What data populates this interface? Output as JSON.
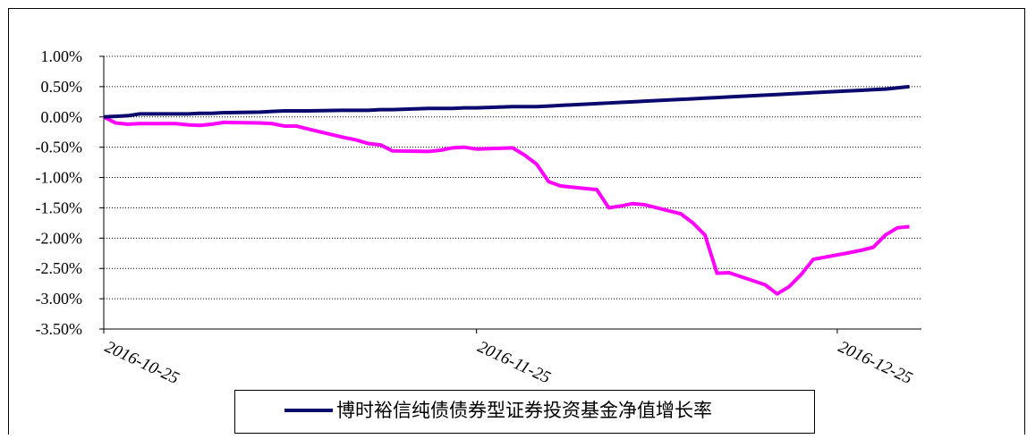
{
  "chart_data": {
    "type": "line",
    "x": [
      "2016-10-25",
      "2016-10-26",
      "2016-10-27",
      "2016-10-28",
      "2016-10-31",
      "2016-11-01",
      "2016-11-02",
      "2016-11-03",
      "2016-11-04",
      "2016-11-07",
      "2016-11-08",
      "2016-11-09",
      "2016-11-10",
      "2016-11-11",
      "2016-11-14",
      "2016-11-15",
      "2016-11-16",
      "2016-11-17",
      "2016-11-18",
      "2016-11-21",
      "2016-11-22",
      "2016-11-23",
      "2016-11-24",
      "2016-11-25",
      "2016-11-28",
      "2016-11-29",
      "2016-11-30",
      "2016-12-01",
      "2016-12-02",
      "2016-12-05",
      "2016-12-06",
      "2016-12-07",
      "2016-12-08",
      "2016-12-09",
      "2016-12-12",
      "2016-12-13",
      "2016-12-14",
      "2016-12-15",
      "2016-12-16",
      "2016-12-19",
      "2016-12-20",
      "2016-12-21",
      "2016-12-22",
      "2016-12-23",
      "2016-12-26",
      "2016-12-27",
      "2016-12-28",
      "2016-12-29",
      "2016-12-30",
      "2016-12-31"
    ],
    "series": [
      {
        "name": "博时裕信纯债债券型证券投资基金净值增长率",
        "color": "#0a0a6e",
        "values": [
          0,
          0.01,
          0.02,
          0.05,
          0.05,
          0.05,
          0.06,
          0.06,
          0.07,
          0.08,
          0.09,
          0.1,
          0.1,
          0.1,
          0.11,
          0.11,
          0.11,
          0.12,
          0.12,
          0.14,
          0.14,
          0.14,
          0.15,
          0.15,
          0.17,
          0.17,
          0.17,
          0.18,
          0.19,
          0.22,
          0.23,
          0.24,
          0.25,
          0.26,
          0.29,
          0.3,
          0.31,
          0.32,
          0.33,
          0.36,
          0.37,
          0.38,
          0.39,
          0.4,
          0.43,
          0.44,
          0.45,
          0.46,
          0.48,
          0.5
        ]
      },
      {
        "color": "#ff00ff",
        "values": [
          0,
          -0.1,
          -0.12,
          -0.11,
          -0.11,
          -0.13,
          -0.14,
          -0.12,
          -0.09,
          -0.1,
          -0.11,
          -0.15,
          -0.15,
          -0.2,
          -0.34,
          -0.38,
          -0.44,
          -0.46,
          -0.56,
          -0.57,
          -0.55,
          -0.51,
          -0.5,
          -0.53,
          -0.51,
          -0.63,
          -0.78,
          -1.07,
          -1.14,
          -1.2,
          -1.5,
          -1.47,
          -1.43,
          -1.45,
          -1.6,
          -1.75,
          -1.95,
          -2.58,
          -2.57,
          -2.77,
          -2.92,
          -2.8,
          -2.6,
          -2.35,
          -2.24,
          -2.2,
          -2.15,
          -1.95,
          -1.83,
          -1.81
        ]
      }
    ],
    "xlim": [
      "2016-10-25",
      "2017-01-01"
    ],
    "xticks": [
      "2016-10-25",
      "2016-11-25",
      "2016-12-25"
    ],
    "ylim": [
      -3.5,
      1
    ],
    "yticks": [
      {
        "value": 1,
        "label": "1.00%"
      },
      {
        "value": 0.5,
        "label": "0.50%"
      },
      {
        "value": 0,
        "label": "0.00%"
      },
      {
        "value": -0.5,
        "label": "-0.50%"
      },
      {
        "value": -1,
        "label": "-1.00%"
      },
      {
        "value": -1.5,
        "label": "-1.50%"
      },
      {
        "value": -2,
        "label": "-2.00%"
      },
      {
        "value": -2.5,
        "label": "-2.50%"
      },
      {
        "value": -3,
        "label": "-3.00%"
      },
      {
        "value": -3.5,
        "label": "-3.50%"
      }
    ],
    "grid": true
  }
}
